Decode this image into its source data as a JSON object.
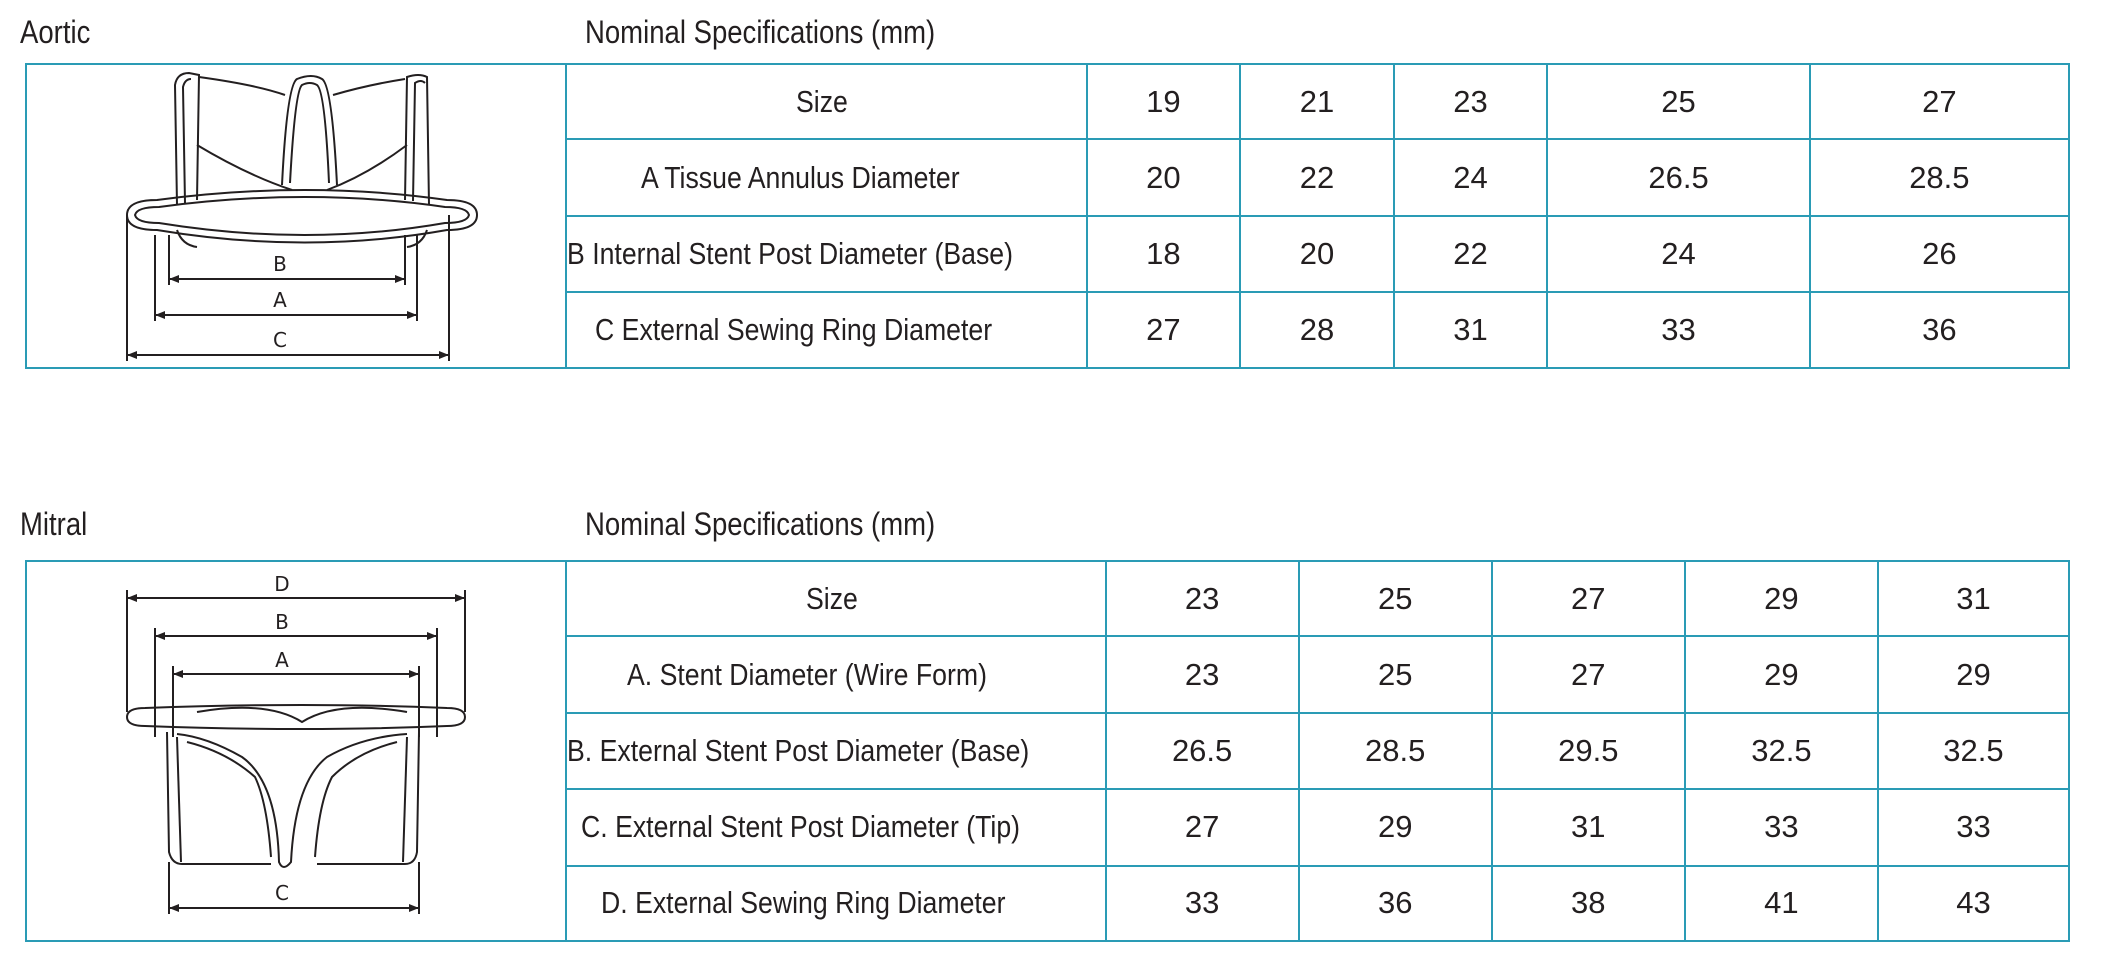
{
  "aortic": {
    "title": "Aortic",
    "heading": "Nominal Specifications (mm)",
    "diagram": {
      "labels": [
        "B",
        "A",
        "C"
      ]
    },
    "rows": [
      {
        "label": "Size",
        "values": [
          "19",
          "21",
          "23",
          "25",
          "27"
        ]
      },
      {
        "label": "A   Tissue Annulus Diameter",
        "values": [
          "20",
          "22",
          "24",
          "26.5",
          "28.5"
        ]
      },
      {
        "label": "B   Internal  Stent Post Diameter (Base)",
        "values": [
          "18",
          "20",
          "22",
          "24",
          "26"
        ]
      },
      {
        "label": "C   External Sewing Ring Diameter",
        "values": [
          "27",
          "28",
          "31",
          "33",
          "36"
        ]
      }
    ]
  },
  "mitral": {
    "title": "Mitral",
    "heading": "Nominal Specifications (mm)",
    "diagram": {
      "labels": [
        "D",
        "B",
        "A",
        "C"
      ]
    },
    "rows": [
      {
        "label": "Size",
        "values": [
          "23",
          "25",
          "27",
          "29",
          "31"
        ]
      },
      {
        "label": "A. Stent Diameter (Wire Form)",
        "values": [
          "23",
          "25",
          "27",
          "29",
          "29"
        ]
      },
      {
        "label": "B. External Stent Post Diameter (Base)",
        "values": [
          "26.5",
          "28.5",
          "29.5",
          "32.5",
          "32.5"
        ]
      },
      {
        "label": "C. External Stent Post Diameter (Tip)",
        "values": [
          "27",
          "29",
          "31",
          "33",
          "33"
        ]
      },
      {
        "label": "D. External Sewing Ring Diameter",
        "values": [
          "33",
          "36",
          "38",
          "41",
          "43"
        ]
      }
    ]
  }
}
